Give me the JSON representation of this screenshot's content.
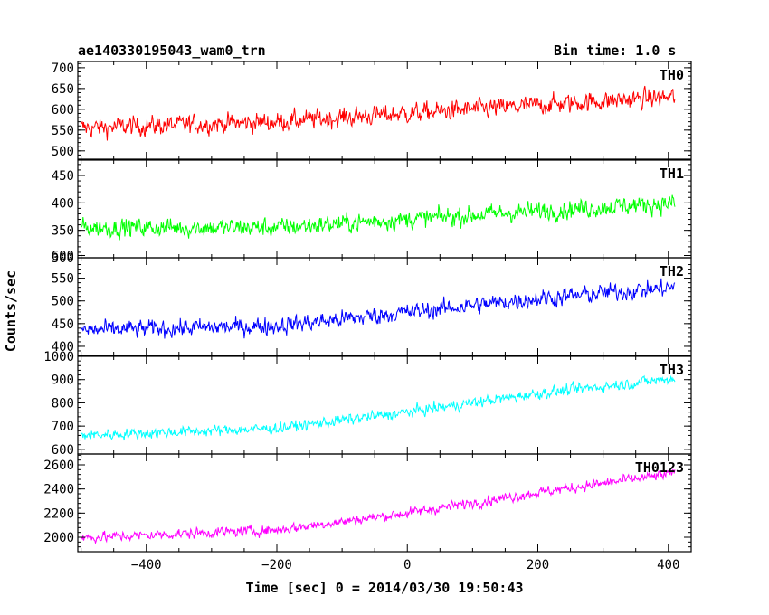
{
  "header": {
    "title": "ae140330195043_wam0_trn",
    "bin_time": "Bin time: 1.0 s"
  },
  "axes": {
    "ylabel": "Counts/sec",
    "xlabel": "Time [sec] 0 = 2014/03/30 19:50:43",
    "xlim": [
      -505,
      435
    ],
    "xticks": [
      -400,
      -200,
      0,
      200,
      400
    ]
  },
  "chart_data": [
    {
      "type": "line",
      "name": "TH0",
      "color": "#ff0000",
      "ylim": [
        480,
        715
      ],
      "yticks": [
        500,
        550,
        600,
        650,
        700
      ],
      "trend": {
        "x": [
          -500,
          -200,
          0,
          200,
          410
        ],
        "y": [
          555,
          570,
          590,
          610,
          630
        ]
      },
      "noise_amplitude": 30,
      "x_range": [
        -500,
        410
      ]
    },
    {
      "type": "line",
      "name": "TH1",
      "color": "#00ff00",
      "ylim": [
        300,
        478
      ],
      "yticks": [
        300,
        350,
        400,
        450
      ],
      "trend": {
        "x": [
          -500,
          -200,
          0,
          200,
          410
        ],
        "y": [
          355,
          355,
          370,
          385,
          400
        ]
      },
      "noise_amplitude": 22,
      "x_range": [
        -500,
        410
      ]
    },
    {
      "type": "line",
      "name": "TH2",
      "color": "#0000ff",
      "ylim": [
        380,
        595
      ],
      "yticks": [
        400,
        450,
        500,
        550,
        600
      ],
      "ytick_labels": [
        "400",
        "450",
        "500",
        "550",
        "600"
      ],
      "trend": {
        "x": [
          -500,
          -200,
          0,
          200,
          410
        ],
        "y": [
          435,
          445,
          475,
          505,
          530
        ]
      },
      "noise_amplitude": 25,
      "x_range": [
        -500,
        410
      ]
    },
    {
      "type": "line",
      "name": "TH3",
      "color": "#00ffff",
      "ylim": [
        580,
        1000
      ],
      "yticks": [
        600,
        700,
        800,
        900,
        1000
      ],
      "trend": {
        "x": [
          -500,
          -200,
          0,
          200,
          410
        ],
        "y": [
          660,
          690,
          760,
          840,
          905
        ]
      },
      "noise_amplitude": 30,
      "x_range": [
        -500,
        410
      ]
    },
    {
      "type": "line",
      "name": "TH0123",
      "color": "#ff00ff",
      "ylim": [
        1880,
        2690
      ],
      "yticks": [
        2000,
        2200,
        2400,
        2600
      ],
      "trend": {
        "x": [
          -500,
          -200,
          0,
          200,
          410
        ],
        "y": [
          1995,
          2060,
          2200,
          2370,
          2530
        ]
      },
      "noise_amplitude": 55,
      "x_range": [
        -500,
        410
      ]
    }
  ]
}
